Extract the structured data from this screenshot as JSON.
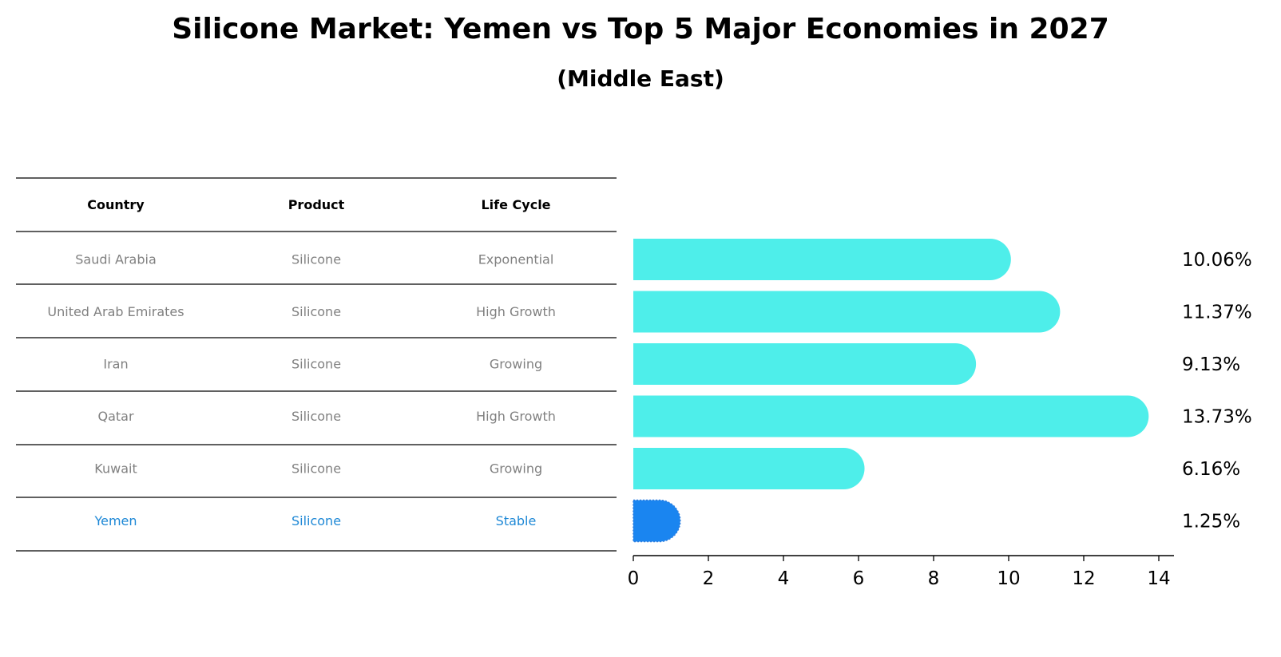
{
  "chart_data": {
    "type": "bar",
    "orientation": "horizontal",
    "title": "Silicone Market: Yemen vs Top 5 Major Economies in 2027",
    "subtitle": "(Middle East)",
    "xlabel": "",
    "ylabel": "",
    "xlim": [
      0,
      14.5
    ],
    "xticks": [
      0,
      2,
      4,
      6,
      8,
      10,
      12,
      14
    ],
    "categories": [
      "Saudi Arabia",
      "United Arab Emirates",
      "Iran",
      "Qatar",
      "Kuwait",
      "Yemen"
    ],
    "values": [
      10.06,
      11.37,
      9.13,
      13.73,
      6.16,
      1.25
    ],
    "value_labels": [
      "10.06%",
      "11.37%",
      "9.13%",
      "13.73%",
      "6.16%",
      "1.25%"
    ],
    "highlight": "Yemen",
    "colors": {
      "default": "#4eeeea",
      "highlight": "#1a85f0",
      "highlight_text": "#1e88d6",
      "muted_text": "#808080"
    },
    "table": {
      "headers": [
        "Country",
        "Product",
        "Life Cycle"
      ],
      "rows": [
        [
          "Saudi Arabia",
          "Silicone",
          "Exponential"
        ],
        [
          "United Arab Emirates",
          "Silicone",
          "High Growth"
        ],
        [
          "Iran",
          "Silicone",
          "Growing"
        ],
        [
          "Qatar",
          "Silicone",
          "High Growth"
        ],
        [
          "Kuwait",
          "Silicone",
          "Growing"
        ],
        [
          "Yemen",
          "Silicone",
          "Stable"
        ]
      ]
    }
  }
}
